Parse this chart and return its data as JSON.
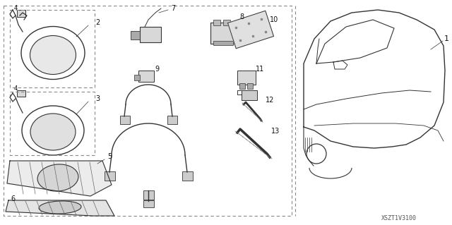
{
  "bg_color": "#ffffff",
  "diagram_id": "XSZT1V3100",
  "line_color": "#333333",
  "light_gray": "#d8d8d8",
  "mid_gray": "#aaaaaa",
  "border_gray": "#888888"
}
